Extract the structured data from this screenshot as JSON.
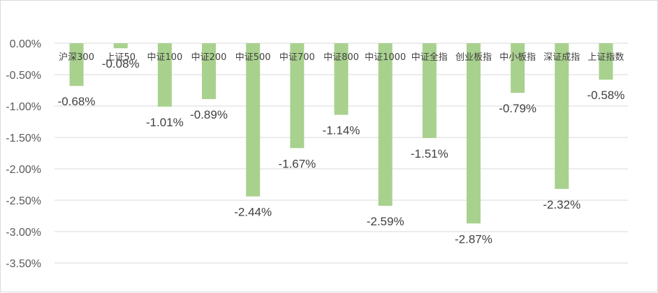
{
  "chart_data": {
    "type": "bar",
    "categories": [
      "沪深300",
      "上证50",
      "中证100",
      "中证200",
      "中证500",
      "中证700",
      "中证800",
      "中证1000",
      "中证全指",
      "创业板指",
      "中小板指",
      "深证成指",
      "上证指数"
    ],
    "values": [
      -0.68,
      -0.08,
      -1.01,
      -0.89,
      -2.44,
      -1.67,
      -1.14,
      -2.59,
      -1.51,
      -2.87,
      -0.79,
      -2.32,
      -0.58
    ],
    "value_labels": [
      "-0.68%",
      "-0.08%",
      "-1.01%",
      "-0.89%",
      "-2.44%",
      "-1.67%",
      "-1.14%",
      "-2.59%",
      "-1.51%",
      "-2.87%",
      "-0.79%",
      "-2.32%",
      "-0.58%"
    ],
    "y_ticks": [
      0,
      -0.5,
      -1.0,
      -1.5,
      -2.0,
      -2.5,
      -3.0,
      -3.5
    ],
    "y_tick_labels": [
      "0.00%",
      "-0.50%",
      "-1.00%",
      "-1.50%",
      "-2.00%",
      "-2.50%",
      "-3.00%",
      "-3.50%"
    ],
    "ylim": [
      -3.5,
      0
    ],
    "grid": true,
    "legend": "none",
    "bar_color": "#a9d18e",
    "title": "",
    "xlabel": "",
    "ylabel": ""
  }
}
